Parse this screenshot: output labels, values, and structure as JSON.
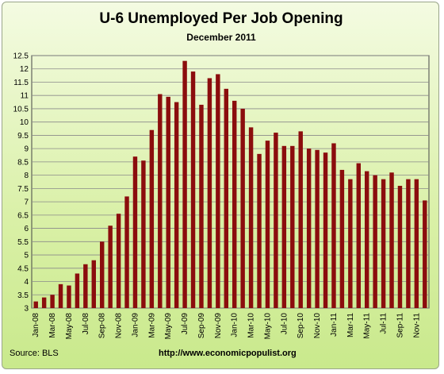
{
  "chart_data": {
    "type": "bar",
    "title": "U-6 Unemployed Per Job Opening",
    "subtitle": "December 2011",
    "source": "Source:  BLS",
    "website": "http://www.economicpopulist.org",
    "ylim": [
      3,
      12.5
    ],
    "yticks": [
      "3",
      "3.5",
      "4",
      "4.5",
      "5",
      "5.5",
      "6",
      "6.5",
      "7",
      "7.5",
      "8",
      "8.5",
      "9",
      "9.5",
      "10",
      "10.5",
      "11",
      "11.5",
      "12",
      "12.5"
    ],
    "grid": true,
    "bar_color": "#8b0d0d",
    "xtick_labels": [
      "Jan-08",
      "Mar-08",
      "May-08",
      "Jul-08",
      "Sep-08",
      "Nov-08",
      "Jan-09",
      "Mar-09",
      "May-09",
      "Jul-09",
      "Sep-09",
      "Nov-09",
      "Jan-10",
      "Mar-10",
      "May-10",
      "Jul-10",
      "Sep-10",
      "Nov-10",
      "Jan-11",
      "Mar-11",
      "May-11",
      "Jul-11",
      "Sep-11",
      "Nov-11"
    ],
    "values": [
      3.25,
      3.4,
      3.5,
      3.9,
      3.85,
      4.3,
      4.65,
      4.8,
      5.5,
      6.1,
      6.55,
      7.2,
      8.7,
      8.55,
      9.7,
      11.05,
      10.95,
      10.75,
      12.3,
      11.9,
      10.65,
      11.65,
      11.8,
      11.25,
      10.8,
      10.5,
      9.8,
      8.8,
      9.3,
      9.6,
      9.1,
      9.1,
      9.65,
      9.0,
      8.95,
      8.85,
      9.2,
      8.2,
      7.85,
      8.45,
      8.15,
      8.0,
      7.85,
      8.1,
      7.6,
      7.85,
      7.85,
      7.05
    ]
  }
}
